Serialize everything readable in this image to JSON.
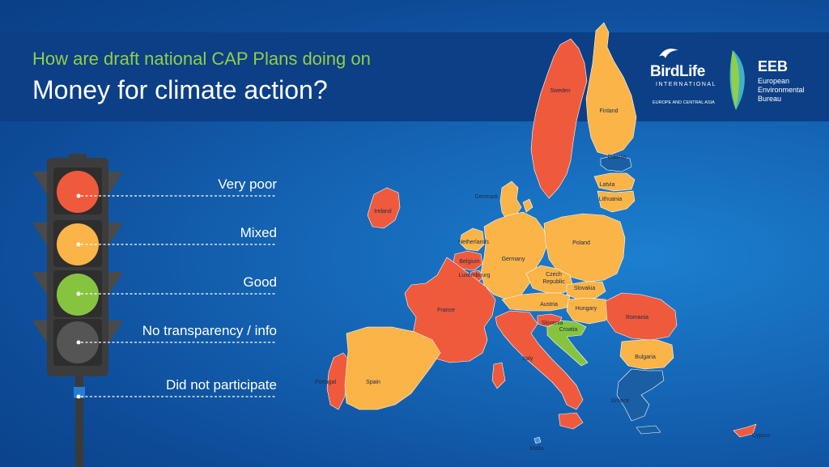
{
  "title": {
    "line1": "How are draft national CAP Plans doing on",
    "line2": "Money for climate action?"
  },
  "colors": {
    "very_poor": "#ef5a3c",
    "mixed": "#fbb448",
    "good": "#86c440",
    "no_transparency": "#1a5fa3",
    "did_not_participate": "#4a90d9"
  },
  "legend": [
    {
      "label": "Very poor",
      "status": "very_poor"
    },
    {
      "label": "Mixed",
      "status": "mixed"
    },
    {
      "label": "Good",
      "status": "good"
    },
    {
      "label": "No transparency / info",
      "status": "no_transparency"
    },
    {
      "label": "Did not participate",
      "status": "did_not_participate"
    }
  ],
  "logos": {
    "birdlife": {
      "name": "BirdLife",
      "sub": "INTERNATIONAL",
      "region": "EUROPE AND CENTRAL ASIA"
    },
    "eeb": {
      "name": "EEB",
      "line1": "European",
      "line2": "Environmental",
      "line3": "Bureau"
    }
  },
  "countries": [
    {
      "name": "Sweden",
      "status": "very_poor"
    },
    {
      "name": "Finland",
      "status": "mixed"
    },
    {
      "name": "Estonia",
      "status": "no_transparency"
    },
    {
      "name": "Latvia",
      "status": "mixed"
    },
    {
      "name": "Lithuania",
      "status": "mixed"
    },
    {
      "name": "Denmark",
      "status": "mixed"
    },
    {
      "name": "Ireland",
      "status": "very_poor"
    },
    {
      "name": "Netherlands",
      "status": "mixed"
    },
    {
      "name": "Belgium",
      "status": "very_poor"
    },
    {
      "name": "Luxembourg",
      "status": "very_poor"
    },
    {
      "name": "Germany",
      "status": "mixed"
    },
    {
      "name": "Poland",
      "status": "mixed"
    },
    {
      "name": "Czech Republic",
      "status": "mixed"
    },
    {
      "name": "Slovakia",
      "status": "mixed"
    },
    {
      "name": "Austria",
      "status": "mixed"
    },
    {
      "name": "Hungary",
      "status": "mixed"
    },
    {
      "name": "Slovenia",
      "status": "very_poor"
    },
    {
      "name": "Croatia",
      "status": "good"
    },
    {
      "name": "Romania",
      "status": "very_poor"
    },
    {
      "name": "Bulgaria",
      "status": "mixed"
    },
    {
      "name": "France",
      "status": "very_poor"
    },
    {
      "name": "Italy",
      "status": "very_poor"
    },
    {
      "name": "Portugal",
      "status": "very_poor"
    },
    {
      "name": "Spain",
      "status": "mixed"
    },
    {
      "name": "Greece",
      "status": "no_transparency"
    },
    {
      "name": "Malta",
      "status": "did_not_participate"
    },
    {
      "name": "Cyprus",
      "status": "very_poor"
    }
  ]
}
